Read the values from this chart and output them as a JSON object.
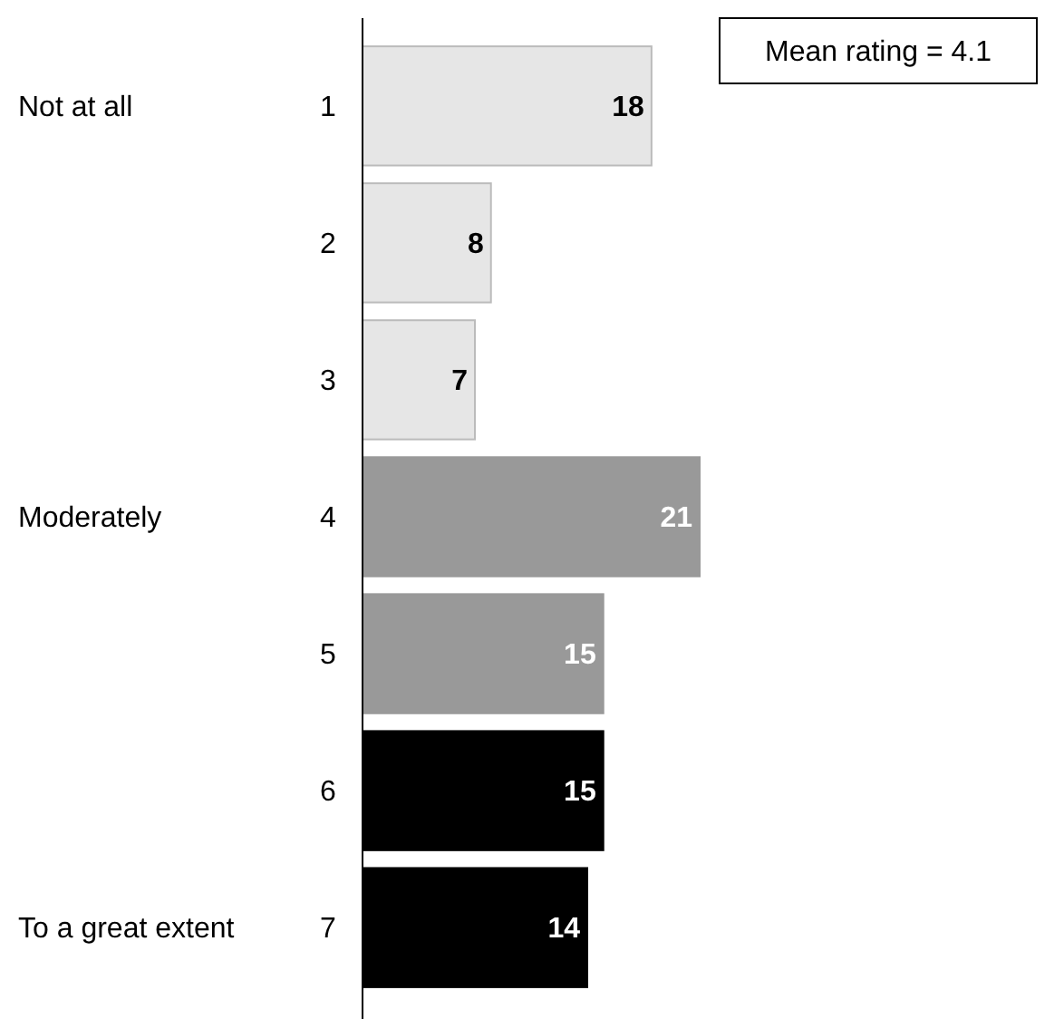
{
  "chart_data": {
    "type": "bar",
    "orientation": "horizontal",
    "categories": [
      "1",
      "2",
      "3",
      "4",
      "5",
      "6",
      "7"
    ],
    "values": [
      18,
      8,
      7,
      21,
      15,
      15,
      14
    ],
    "colors": [
      "#e6e6e6",
      "#e6e6e6",
      "#e6e6e6",
      "#999999",
      "#999999",
      "#000000",
      "#000000"
    ],
    "data_labels": true,
    "annotations": [
      "Not at all",
      "Moderately",
      "To a great extent",
      "Mean rating = 4.1"
    ]
  }
}
